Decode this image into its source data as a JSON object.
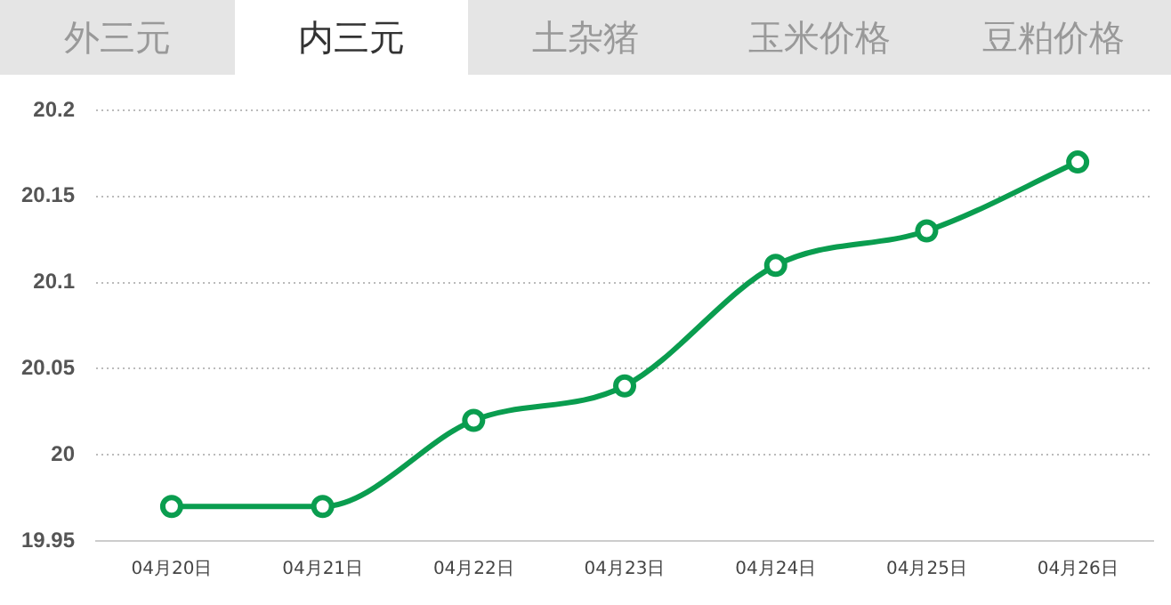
{
  "chart_data": {
    "type": "line",
    "annotations": [
      "外三元",
      "内三元",
      "土杂猪",
      "玉米价格",
      "豆粕价格"
    ],
    "categories": [
      "04月20日",
      "04月21日",
      "04月22日",
      "04月23日",
      "04月24日",
      "04月25日",
      "04月26日"
    ],
    "series": [
      {
        "color": "#0a9d4f",
        "values": [
          19.97,
          19.97,
          20.02,
          20.04,
          20.11,
          20.13,
          20.17
        ]
      }
    ],
    "ylim": [
      19.95,
      20.2
    ],
    "yticks": [
      19.95,
      20,
      20.05,
      20.1,
      20.15,
      20.2
    ],
    "grid": "y",
    "legend": false,
    "marker": "circle",
    "line_style": "solid"
  }
}
